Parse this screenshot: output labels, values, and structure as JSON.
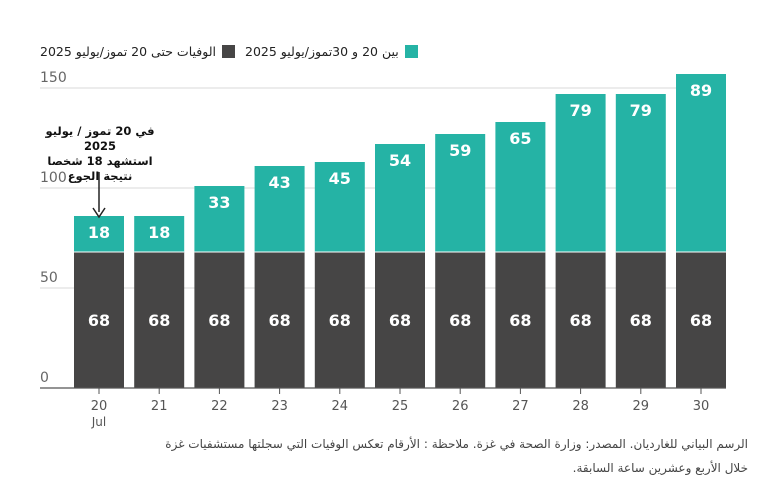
{
  "legend": {
    "after_label": "بين 20 و 30تموز/يوليو 2025",
    "before_label": "الوفيات حتى 20 تموز/يوليو 2025"
  },
  "annotation": {
    "line1": "في 20 تموز / يوليو 2025",
    "line2": "استشهد 18 شخصا",
    "line3": "نتيجة الجوع"
  },
  "caption": {
    "line1": "الرسم البياني للغارديان. المصدر: وزارة الصحة في غزة. ملاحظة : الأرقام تعكس الوفيات التي سجلتها مستشفيات غزة",
    "line2": "خلال الأربع وعشرين ساعة السابقة."
  },
  "colors": {
    "before": "#464545",
    "after": "#25b3a5",
    "grid": "#d9d9d9",
    "axis": "#555555"
  },
  "chart_data": {
    "type": "bar",
    "stacked": true,
    "categories": [
      "20",
      "21",
      "22",
      "23",
      "24",
      "25",
      "26",
      "27",
      "28",
      "29",
      "30"
    ],
    "x_sublabel": "Jul",
    "series": [
      {
        "name": "الوفيات حتى 20 تموز/يوليو 2025",
        "values": [
          68,
          68,
          68,
          68,
          68,
          68,
          68,
          68,
          68,
          68,
          68
        ]
      },
      {
        "name": "بين 20 و 30تموز/يوليو 2025",
        "values": [
          18,
          18,
          33,
          43,
          45,
          54,
          59,
          65,
          79,
          79,
          89
        ]
      }
    ],
    "ylim": [
      0,
      150
    ],
    "yticks": [
      0,
      50,
      100,
      150
    ],
    "grid": true,
    "legend_position": "top"
  }
}
